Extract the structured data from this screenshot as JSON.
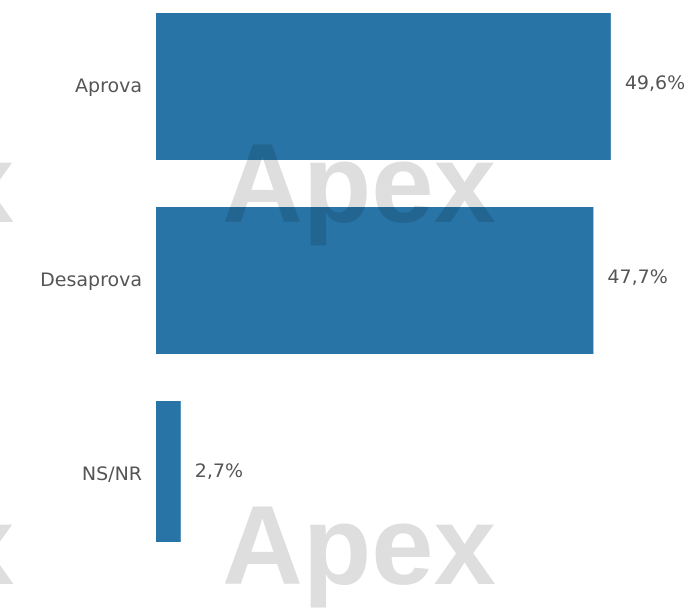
{
  "chart_data": {
    "type": "bar",
    "orientation": "horizontal",
    "categories": [
      "Aprova",
      "Desaprova",
      "NS/NR"
    ],
    "values": [
      49.6,
      47.7,
      2.7
    ],
    "value_labels": [
      "49,6%",
      "47,7%",
      "2,7%"
    ],
    "xlim": [
      0,
      50
    ],
    "grid": false,
    "bar_color": "#2874A6",
    "title": "",
    "xlabel": "",
    "ylabel": ""
  },
  "watermark": {
    "text": "Apex"
  }
}
